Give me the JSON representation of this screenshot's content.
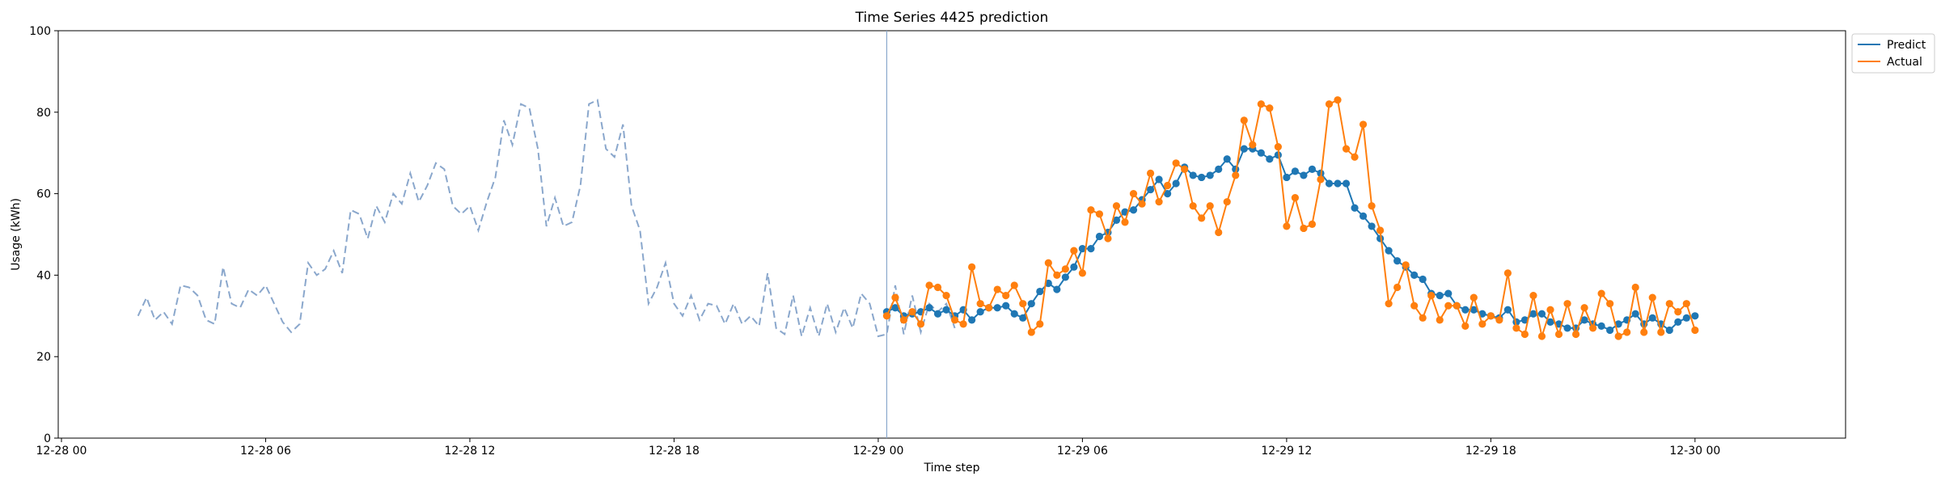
{
  "chart_data": {
    "type": "line",
    "title": "Time Series 4425 prediction",
    "xlabel": "Time step",
    "ylabel": "Usage (kWh)",
    "ylim": [
      0,
      100
    ],
    "y_ticks": [
      0,
      20,
      40,
      60,
      80,
      100
    ],
    "x_ticks": [
      "12-28 00",
      "12-28 06",
      "12-28 12",
      "12-28 18",
      "12-29 00",
      "12-29 06",
      "12-29 12",
      "12-29 18",
      "12-30 00"
    ],
    "x_start": "2020-12-28 02:15",
    "x_step_minutes": 15,
    "forecast_start_index": 88,
    "legend": [
      "Predict",
      "Actual"
    ],
    "legend_position": "upper right, outside plot",
    "colors": {
      "history": "#8aa7cc",
      "predict": "#1f77b4",
      "actual": "#ff7f0e",
      "divider": "#8aa7cc"
    },
    "series": [
      {
        "name": "History",
        "style": "dashed",
        "start_index": 0,
        "values": [
          30,
          34.5,
          29,
          31,
          28,
          37.5,
          37,
          35,
          29,
          28,
          42,
          33,
          32,
          36.5,
          35,
          37.5,
          33,
          28.5,
          26,
          28,
          43,
          40,
          41.5,
          46,
          40.5,
          56,
          55,
          49,
          57,
          53,
          60,
          57.5,
          65,
          58,
          62,
          67.5,
          66,
          57,
          55,
          57,
          51,
          58,
          64,
          78,
          72,
          82,
          81,
          71,
          52,
          59,
          52,
          53,
          62,
          82,
          83,
          71,
          69,
          77,
          57,
          51,
          33,
          37,
          43,
          33,
          30,
          35,
          29,
          33,
          32.5,
          28,
          33,
          28,
          30,
          27.5,
          40.5,
          27,
          25.5,
          35,
          25,
          32,
          25,
          33,
          26,
          32,
          27,
          35.5,
          33,
          25,
          25.5,
          37.5,
          25.5,
          35,
          26,
          33,
          31,
          33,
          27
        ]
      },
      {
        "name": "Predict",
        "style": "solid-markers",
        "start_index": 88,
        "values": [
          31,
          32,
          30,
          30.5,
          31,
          32,
          30.5,
          31.5,
          30,
          31.5,
          29,
          31,
          32,
          32,
          32.5,
          30.5,
          29.5,
          33,
          36,
          38,
          36.5,
          39.5,
          42,
          46.5,
          46.5,
          49.5,
          50.5,
          53.5,
          55.5,
          56,
          58.5,
          61,
          63.5,
          60,
          62.5,
          66.5,
          64.5,
          64,
          64.5,
          66,
          68.5,
          66,
          71,
          71,
          70,
          68.5,
          69.5,
          64,
          65.5,
          64.5,
          66,
          65,
          62.5,
          62.5,
          62.5,
          56.5,
          54.5,
          52,
          49,
          46,
          43.5,
          42,
          40,
          39,
          35.5,
          35,
          35.5,
          32.5,
          31.5,
          31.5,
          30.5,
          30,
          29.5,
          31.5,
          28.5,
          29,
          30.5,
          30.5,
          28.5,
          28,
          27,
          27,
          29,
          28,
          27.5,
          26.5,
          28,
          29,
          30.5,
          28,
          29.5,
          28,
          26.5,
          28.5,
          29.5,
          30
        ]
      },
      {
        "name": "Actual",
        "style": "solid-markers",
        "start_index": 88,
        "values": [
          30,
          34.5,
          29,
          31,
          28,
          37.5,
          37,
          35,
          29,
          28,
          42,
          33,
          32,
          36.5,
          35,
          37.5,
          33,
          26,
          28,
          43,
          40,
          41.5,
          46,
          40.5,
          56,
          55,
          49,
          57,
          53,
          60,
          57.5,
          65,
          58,
          62,
          67.5,
          66,
          57,
          54,
          57,
          50.5,
          58,
          64.5,
          78,
          72,
          82,
          81,
          71.5,
          52,
          59,
          51.5,
          52.5,
          63.5,
          82,
          83,
          71,
          69,
          77,
          57,
          51,
          33,
          37,
          42.5,
          32.5,
          29.5,
          35,
          29,
          32.5,
          32.5,
          27.5,
          34.5,
          28,
          30,
          29,
          40.5,
          27,
          25.5,
          35,
          25,
          31.5,
          25.5,
          33,
          25.5,
          32,
          27,
          35.5,
          33,
          25,
          26,
          37,
          26,
          34.5,
          26,
          33,
          31,
          33,
          26.5
        ]
      }
    ]
  }
}
